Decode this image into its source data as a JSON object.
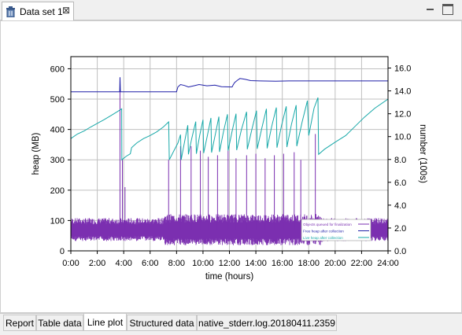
{
  "editor_tab": {
    "title": "Data set 1",
    "close_glyph": "⊠",
    "icon": "trash-icon"
  },
  "window_controls": {
    "minimize_icon": "minimize-icon",
    "maximize_icon": "maximize-icon"
  },
  "bottom_tabs": [
    {
      "label": "Report",
      "active": false
    },
    {
      "label": "Table data",
      "active": false
    },
    {
      "label": "Line plot",
      "active": true
    },
    {
      "label": "Structured data",
      "active": false
    },
    {
      "label": "native_stderr.log.20180411.2359",
      "active": false
    }
  ],
  "chart_data": {
    "type": "line",
    "xlabel": "time (hours)",
    "ylabel": "heap (MB)",
    "y2label": "number (100s)",
    "xlim": [
      0,
      24
    ],
    "ylim": [
      0,
      640
    ],
    "y2lim": [
      0,
      17
    ],
    "xticks": [
      "0:00",
      "2:00",
      "4:00",
      "6:00",
      "8:00",
      "10:00",
      "12:00",
      "14:00",
      "16:00",
      "18:00",
      "20:00",
      "22:00",
      "24:00"
    ],
    "yticks": [
      0,
      100,
      200,
      300,
      400,
      500,
      600
    ],
    "y2ticks": [
      "0.0",
      "2.0",
      "4.0",
      "6.0",
      "8.0",
      "10.0",
      "12.0",
      "14.0",
      "16.0"
    ],
    "grid": true,
    "legend_position": "bottom-right",
    "series": [
      {
        "name": "",
        "color": "#1f1fa8",
        "axis": "left",
        "points": [
          [
            0,
            524
          ],
          [
            3.7,
            524
          ],
          [
            3.72,
            572
          ],
          [
            3.75,
            524
          ],
          [
            8.0,
            524
          ],
          [
            8.1,
            540
          ],
          [
            8.3,
            548
          ],
          [
            8.6,
            545
          ],
          [
            8.9,
            540
          ],
          [
            9.3,
            544
          ],
          [
            9.7,
            548
          ],
          [
            10.3,
            544
          ],
          [
            10.9,
            546
          ],
          [
            11.4,
            541
          ],
          [
            12.2,
            540
          ],
          [
            12.3,
            548
          ],
          [
            12.4,
            555
          ],
          [
            12.6,
            562
          ],
          [
            12.8,
            568
          ],
          [
            13.2,
            565
          ],
          [
            13.6,
            561
          ],
          [
            14.3,
            560
          ],
          [
            15.5,
            559
          ],
          [
            16.5,
            560
          ],
          [
            17.5,
            560
          ],
          [
            18.0,
            560
          ],
          [
            24,
            560
          ]
        ]
      },
      {
        "name": "",
        "color": "#17a8a8",
        "axis": "left",
        "points": [
          [
            0,
            370
          ],
          [
            0.5,
            385
          ],
          [
            1.0,
            395
          ],
          [
            1.5,
            408
          ],
          [
            2.0,
            420
          ],
          [
            2.5,
            432
          ],
          [
            3.0,
            445
          ],
          [
            3.5,
            458
          ],
          [
            3.85,
            468
          ],
          [
            3.86,
            300
          ],
          [
            4.2,
            312
          ],
          [
            4.5,
            320
          ],
          [
            4.6,
            340
          ],
          [
            5.0,
            356
          ],
          [
            5.5,
            370
          ],
          [
            6.0,
            380
          ],
          [
            6.5,
            392
          ],
          [
            7.0,
            408
          ],
          [
            7.4,
            425
          ],
          [
            7.45,
            300
          ],
          [
            7.8,
            330
          ],
          [
            8.1,
            355
          ],
          [
            8.3,
            383
          ],
          [
            8.35,
            300
          ],
          [
            8.6,
            358
          ],
          [
            8.85,
            414
          ],
          [
            8.9,
            318
          ],
          [
            9.15,
            370
          ],
          [
            9.45,
            426
          ],
          [
            9.5,
            320
          ],
          [
            9.75,
            380
          ],
          [
            10.0,
            432
          ],
          [
            10.05,
            322
          ],
          [
            10.35,
            384
          ],
          [
            10.6,
            438
          ],
          [
            10.65,
            324
          ],
          [
            10.95,
            388
          ],
          [
            11.2,
            442
          ],
          [
            11.25,
            326
          ],
          [
            11.55,
            392
          ],
          [
            11.85,
            450
          ],
          [
            11.9,
            330
          ],
          [
            12.2,
            394
          ],
          [
            12.5,
            452
          ],
          [
            12.55,
            332
          ],
          [
            12.9,
            398
          ],
          [
            13.3,
            458
          ],
          [
            13.35,
            335
          ],
          [
            13.7,
            400
          ],
          [
            14.05,
            462
          ],
          [
            14.1,
            336
          ],
          [
            14.45,
            404
          ],
          [
            14.8,
            468
          ],
          [
            14.85,
            338
          ],
          [
            15.2,
            410
          ],
          [
            15.55,
            472
          ],
          [
            15.6,
            340
          ],
          [
            15.95,
            414
          ],
          [
            16.3,
            476
          ],
          [
            16.35,
            342
          ],
          [
            16.7,
            418
          ],
          [
            17.05,
            480
          ],
          [
            17.1,
            345
          ],
          [
            17.5,
            425
          ],
          [
            17.9,
            495
          ],
          [
            18.0,
            380
          ],
          [
            18.4,
            470
          ],
          [
            18.7,
            505
          ],
          [
            18.75,
            318
          ],
          [
            19.2,
            335
          ],
          [
            20.0,
            358
          ],
          [
            20.8,
            380
          ],
          [
            21.5,
            410
          ],
          [
            22.2,
            440
          ],
          [
            23.0,
            470
          ],
          [
            24,
            500
          ]
        ]
      },
      {
        "name": "",
        "color": "#7b2fb0",
        "axis": "left",
        "type": "noise-band",
        "base": 70,
        "amplitude": 38,
        "spikes": [
          [
            3.72,
            570
          ],
          [
            3.9,
            300
          ],
          [
            4.1,
            210
          ],
          [
            7.4,
            300
          ],
          [
            8.3,
            345
          ],
          [
            9.1,
            345
          ],
          [
            9.8,
            330
          ],
          [
            10.4,
            310
          ],
          [
            11.1,
            315
          ],
          [
            11.9,
            330
          ],
          [
            12.5,
            305
          ],
          [
            13.3,
            315
          ],
          [
            14.0,
            320
          ],
          [
            14.7,
            305
          ],
          [
            15.4,
            315
          ],
          [
            16.1,
            320
          ],
          [
            16.9,
            325
          ],
          [
            17.4,
            300
          ],
          [
            18.5,
            385
          ]
        ]
      }
    ],
    "legend": [
      {
        "label": "Objects queued for finalization",
        "color": "#7b2fb0"
      },
      {
        "label": "Free heap after collection",
        "color": "#1f1fa8"
      },
      {
        "label": "Live heap after collection",
        "color": "#17a8a8"
      }
    ]
  }
}
